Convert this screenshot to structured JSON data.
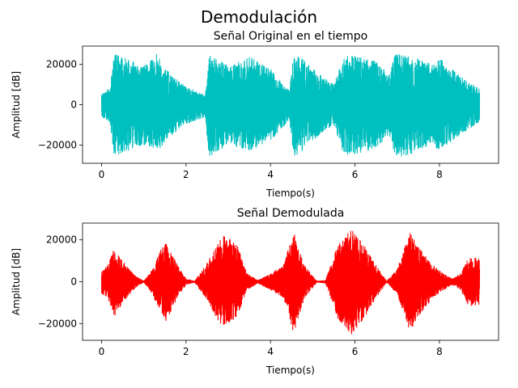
{
  "figure": {
    "suptitle": "Demodulación"
  },
  "chart_data": [
    {
      "type": "line",
      "title": "Señal Original en el tiempo",
      "xlabel": "Tiempo(s)",
      "ylabel": "Amplitud [dB]",
      "xlim": [
        -0.45,
        9.4
      ],
      "ylim": [
        -29000,
        29000
      ],
      "xticks": [
        0,
        2,
        4,
        6,
        8
      ],
      "yticks": [
        -20000,
        0,
        20000
      ],
      "grid": false,
      "series": [
        {
          "color": "#00bfbf",
          "envelope": {
            "x": [
              0,
              0.2,
              0.3,
              0.5,
              1.0,
              1.3,
              1.6,
              2.0,
              2.45,
              2.55,
              2.7,
              3.0,
              3.5,
              4.0,
              4.45,
              4.55,
              4.7,
              5.0,
              5.5,
              5.7,
              5.8,
              6.0,
              6.5,
              6.8,
              6.95,
              7.3,
              7.8,
              8.0,
              8.5,
              8.95
            ],
            "upper": [
              5000,
              9000,
              25000,
              24000,
              19000,
              25000,
              16000,
              9000,
              5000,
              25000,
              24000,
              19000,
              24000,
              18000,
              7000,
              26000,
              24000,
              18000,
              10000,
              22000,
              25000,
              24000,
              22000,
              15000,
              25000,
              25000,
              20000,
              23000,
              14000,
              8000
            ],
            "lower": [
              -6000,
              -9000,
              -26000,
              -24000,
              -20000,
              -24000,
              -16000,
              -10000,
              -6000,
              -26000,
              -24000,
              -20000,
              -23000,
              -18000,
              -8000,
              -26000,
              -24000,
              -18000,
              -10000,
              -23000,
              -26000,
              -25000,
              -22000,
              -15000,
              -26000,
              -25000,
              -20000,
              -23000,
              -15000,
              -9000
            ]
          }
        }
      ]
    },
    {
      "type": "line",
      "title": "Señal Demodulada",
      "xlabel": "Tiempo(s)",
      "ylabel": "Amplitud [dB]",
      "xlim": [
        -0.45,
        9.4
      ],
      "ylim": [
        -28000,
        28000
      ],
      "xticks": [
        0,
        2,
        4,
        6,
        8
      ],
      "yticks": [
        -20000,
        0,
        20000
      ],
      "grid": false,
      "series": [
        {
          "color": "#ff0000",
          "envelope": {
            "x": [
              0,
              0.15,
              0.3,
              0.5,
              0.8,
              1.0,
              1.2,
              1.5,
              1.8,
              2.0,
              2.2,
              2.5,
              2.7,
              2.9,
              3.2,
              3.45,
              3.7,
              4.0,
              4.3,
              4.55,
              4.8,
              5.1,
              5.3,
              5.6,
              5.9,
              6.2,
              6.5,
              6.75,
              7.0,
              7.3,
              7.6,
              7.9,
              8.1,
              8.3,
              8.5,
              8.7,
              8.95
            ],
            "upper": [
              5000,
              8000,
              17000,
              10000,
              3000,
              400,
              6000,
              20000,
              8000,
              1500,
              400,
              9000,
              17000,
              23000,
              18000,
              4000,
              800,
              4000,
              8000,
              24000,
              8000,
              400,
              800,
              18000,
              26000,
              18000,
              8000,
              400,
              6000,
              24000,
              14000,
              7000,
              4000,
              1500,
              4000,
              12000,
              11000
            ],
            "lower": [
              -6000,
              -8000,
              -17000,
              -10000,
              -3000,
              -400,
              -6000,
              -20000,
              -8000,
              -1500,
              -400,
              -9000,
              -17000,
              -22000,
              -17000,
              -4000,
              -800,
              -4000,
              -8000,
              -25000,
              -8000,
              -400,
              -800,
              -18000,
              -26000,
              -18000,
              -8000,
              -400,
              -6000,
              -24000,
              -14000,
              -7000,
              -4000,
              -1500,
              -4000,
              -12000,
              -11000
            ]
          }
        }
      ]
    }
  ]
}
